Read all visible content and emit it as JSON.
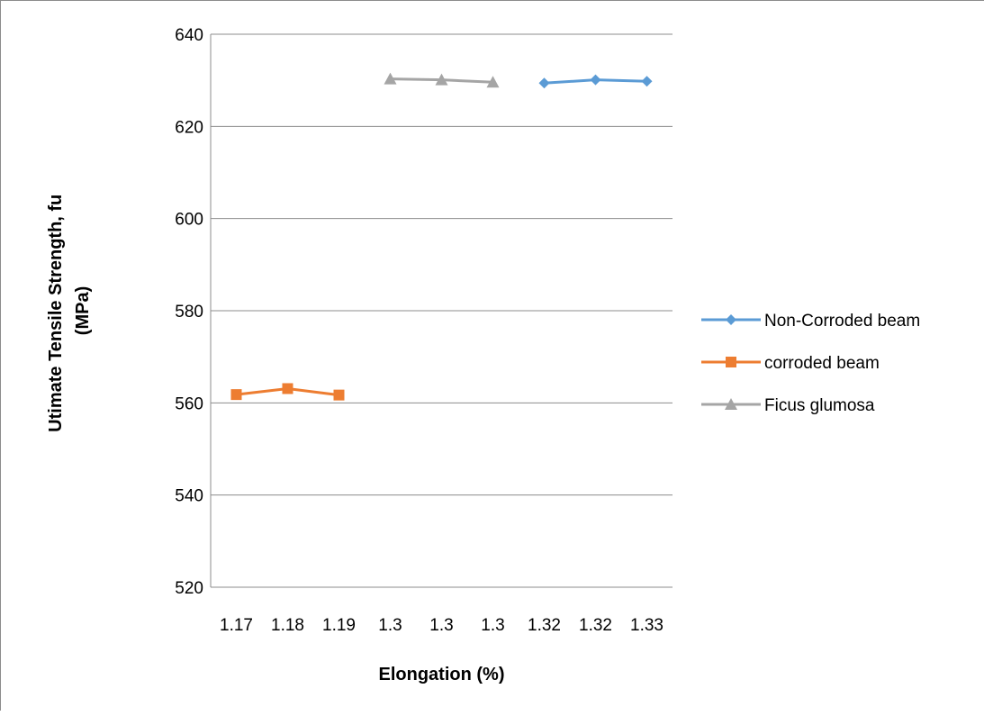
{
  "chart_data": {
    "type": "line",
    "categories": [
      "1.17",
      "1.18",
      "1.19",
      "1.3",
      "1.3",
      "1.3",
      "1.32",
      "1.32",
      "1.33"
    ],
    "xlabel": "Elongation (%)",
    "ylabel_lines": [
      "Utimate Tensile Strength, fu",
      "(MPa)"
    ],
    "ylim": [
      520,
      640
    ],
    "yticks": [
      520,
      540,
      560,
      580,
      600,
      620,
      640
    ],
    "grid": true,
    "legend_position": "right",
    "series": [
      {
        "name": "Non-Corroded  beam",
        "color": "#5b9bd5",
        "marker": "diamond",
        "values": [
          null,
          null,
          null,
          null,
          null,
          null,
          629.4,
          630.1,
          629.8
        ]
      },
      {
        "name": "corroded beam",
        "color": "#ed7d31",
        "marker": "square",
        "values": [
          561.8,
          563.1,
          561.7,
          null,
          null,
          null,
          null,
          null,
          null
        ]
      },
      {
        "name": "Ficus glumosa",
        "color": "#a5a5a5",
        "marker": "triangle",
        "values": [
          null,
          null,
          null,
          630.3,
          630.1,
          629.6,
          null,
          null,
          null
        ]
      }
    ]
  }
}
